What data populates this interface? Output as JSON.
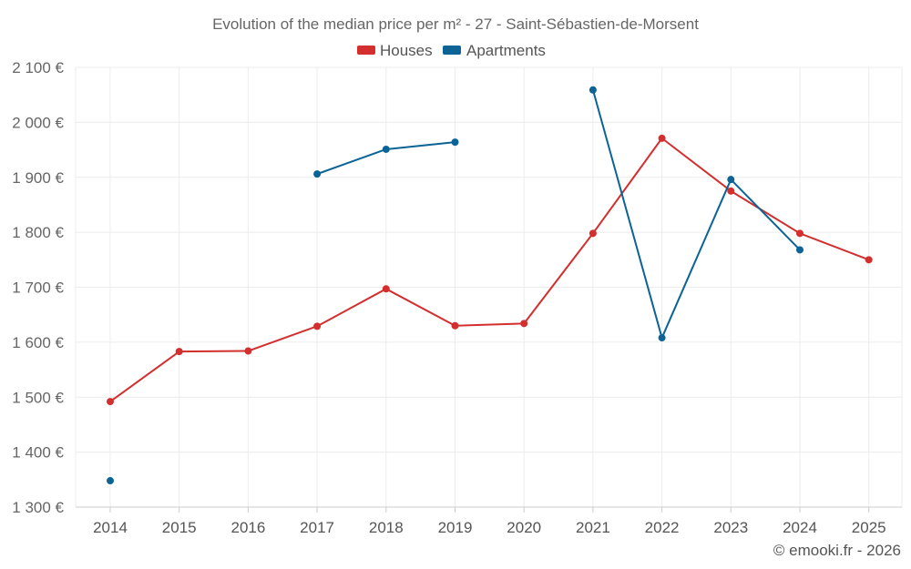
{
  "chart_data": {
    "type": "line",
    "title": "Evolution of the median price per m² - 27 - Saint-Sébastien-de-Morsent",
    "categories": [
      "2014",
      "2015",
      "2016",
      "2017",
      "2018",
      "2019",
      "2020",
      "2021",
      "2022",
      "2023",
      "2024",
      "2025"
    ],
    "ylim": [
      1300,
      2100
    ],
    "yticks": [
      1300,
      1400,
      1500,
      1600,
      1700,
      1800,
      1900,
      2000,
      2100
    ],
    "ytick_labels": [
      "1 300 €",
      "1 400 €",
      "1 500 €",
      "1 600 €",
      "1 700 €",
      "1 800 €",
      "1 900 €",
      "2 000 €",
      "2 100 €"
    ],
    "grid": true,
    "legend_position": "top-center",
    "series": [
      {
        "name": "Houses",
        "color": "#d32f2f",
        "values": [
          1492,
          1583,
          1584,
          1629,
          1697,
          1630,
          1634,
          1798,
          1971,
          1875,
          1798,
          1750
        ]
      },
      {
        "name": "Apartments",
        "color": "#0b6396",
        "values": [
          1348,
          null,
          null,
          1906,
          1951,
          1964,
          null,
          2059,
          1608,
          1896,
          1768,
          null
        ]
      }
    ]
  },
  "credit": "© emooki.fr - 2026"
}
